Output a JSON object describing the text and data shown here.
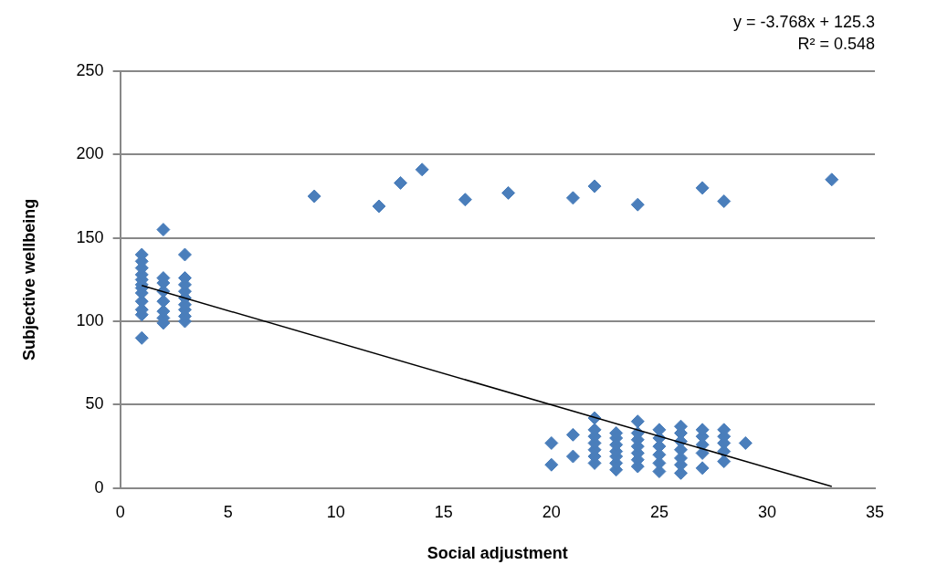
{
  "chart_data": {
    "type": "scatter",
    "xlabel": "Social adjustment",
    "ylabel": "Subjective wellbeing",
    "xlim": [
      0,
      35
    ],
    "xticks": [
      0,
      5,
      10,
      15,
      20,
      25,
      30,
      35
    ],
    "ylim": [
      0,
      250
    ],
    "yticks": [
      0,
      50,
      100,
      150,
      200,
      250
    ],
    "grid": "y",
    "marker": "diamond",
    "legend": false,
    "annotations": [
      "y = -3.768x + 125.3",
      "R² = 0.548"
    ],
    "series": [
      {
        "color": "#4a7ebb",
        "x": [
          1,
          1,
          1,
          1,
          1,
          1,
          1,
          1,
          1,
          1,
          1,
          1,
          2,
          2,
          2,
          2,
          2,
          2,
          2,
          2,
          3,
          3,
          3,
          3,
          3,
          3,
          3,
          3,
          3,
          9,
          12,
          13,
          14,
          16,
          18,
          21,
          22,
          24,
          27,
          28,
          33,
          20,
          20,
          21,
          21,
          22,
          22,
          22,
          22,
          22,
          22,
          22,
          23,
          23,
          23,
          23,
          23,
          23,
          23,
          24,
          24,
          24,
          24,
          24,
          24,
          24,
          25,
          25,
          25,
          25,
          25,
          25,
          26,
          26,
          26,
          26,
          26,
          26,
          26,
          27,
          27,
          27,
          27,
          27,
          28,
          28,
          28,
          28,
          28,
          29
        ],
        "values": [
          90,
          104,
          107,
          112,
          117,
          120,
          122,
          125,
          128,
          132,
          136,
          140,
          99,
          102,
          106,
          112,
          118,
          123,
          126,
          155,
          100,
          103,
          107,
          110,
          114,
          118,
          122,
          126,
          140,
          175,
          169,
          183,
          191,
          173,
          177,
          174,
          181,
          170,
          180,
          172,
          185,
          14,
          27,
          19,
          32,
          15,
          19,
          23,
          27,
          31,
          35,
          42,
          11,
          15,
          19,
          22,
          26,
          30,
          33,
          13,
          17,
          21,
          25,
          29,
          33,
          40,
          10,
          15,
          20,
          25,
          30,
          35,
          9,
          14,
          18,
          23,
          28,
          33,
          37,
          12,
          21,
          26,
          31,
          35,
          16,
          22,
          27,
          31,
          35,
          27
        ]
      },
      {
        "type": "line",
        "color": "#000000",
        "x": [
          1,
          33
        ],
        "values": [
          121.5,
          1
        ],
        "marker": "none"
      }
    ]
  }
}
